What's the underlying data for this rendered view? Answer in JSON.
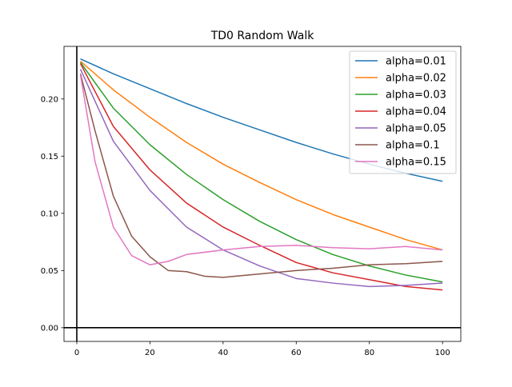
{
  "chart_data": {
    "type": "line",
    "title": "TD0 Random Walk",
    "xlabel": "",
    "ylabel": "",
    "xlim": [
      -3.5,
      105
    ],
    "ylim": [
      -0.012,
      0.246
    ],
    "xticks": [
      0,
      20,
      40,
      60,
      80,
      100
    ],
    "xtick_labels": [
      "0",
      "20",
      "40",
      "60",
      "80",
      "100"
    ],
    "yticks": [
      0.0,
      0.05,
      0.1,
      0.15,
      0.2
    ],
    "ytick_labels": [
      "0.00",
      "0.05",
      "0.10",
      "0.15",
      "0.20"
    ],
    "reference_lines": {
      "vertical_x": 0,
      "horizontal_y": 0
    },
    "grid": false,
    "legend_position": "top-right",
    "series": [
      {
        "name": "alpha=0.01",
        "color": "#1f77b4",
        "x": [
          1,
          10,
          20,
          30,
          40,
          50,
          60,
          70,
          80,
          90,
          100
        ],
        "y": [
          0.235,
          0.222,
          0.209,
          0.196,
          0.184,
          0.173,
          0.162,
          0.152,
          0.143,
          0.135,
          0.128
        ]
      },
      {
        "name": "alpha=0.02",
        "color": "#ff7f0e",
        "x": [
          1,
          10,
          20,
          30,
          40,
          50,
          60,
          70,
          80,
          90,
          100
        ],
        "y": [
          0.233,
          0.208,
          0.184,
          0.162,
          0.143,
          0.127,
          0.112,
          0.099,
          0.088,
          0.077,
          0.068
        ]
      },
      {
        "name": "alpha=0.03",
        "color": "#2ca02c",
        "x": [
          1,
          10,
          20,
          30,
          40,
          50,
          60,
          70,
          80,
          90,
          100
        ],
        "y": [
          0.232,
          0.192,
          0.16,
          0.134,
          0.112,
          0.093,
          0.077,
          0.064,
          0.054,
          0.046,
          0.04
        ]
      },
      {
        "name": "alpha=0.04",
        "color": "#d62728",
        "x": [
          1,
          10,
          20,
          30,
          40,
          50,
          60,
          70,
          80,
          90,
          100
        ],
        "y": [
          0.231,
          0.176,
          0.138,
          0.109,
          0.088,
          0.072,
          0.057,
          0.048,
          0.042,
          0.036,
          0.033
        ]
      },
      {
        "name": "alpha=0.05",
        "color": "#9467bd",
        "x": [
          1,
          10,
          20,
          30,
          40,
          50,
          60,
          70,
          80,
          90,
          100
        ],
        "y": [
          0.226,
          0.163,
          0.12,
          0.088,
          0.068,
          0.054,
          0.043,
          0.039,
          0.036,
          0.037,
          0.039
        ]
      },
      {
        "name": "alpha=0.1",
        "color": "#8c564b",
        "x": [
          1,
          5,
          10,
          15,
          20,
          25,
          30,
          35,
          40,
          50,
          60,
          70,
          80,
          90,
          100
        ],
        "y": [
          0.222,
          0.172,
          0.115,
          0.08,
          0.062,
          0.05,
          0.049,
          0.045,
          0.044,
          0.047,
          0.05,
          0.052,
          0.055,
          0.056,
          0.058
        ]
      },
      {
        "name": "alpha=0.15",
        "color": "#e377c2",
        "x": [
          1,
          5,
          10,
          15,
          20,
          25,
          30,
          40,
          50,
          60,
          70,
          80,
          90,
          100
        ],
        "y": [
          0.221,
          0.145,
          0.088,
          0.063,
          0.055,
          0.058,
          0.064,
          0.068,
          0.071,
          0.072,
          0.07,
          0.069,
          0.071,
          0.068
        ]
      }
    ]
  }
}
